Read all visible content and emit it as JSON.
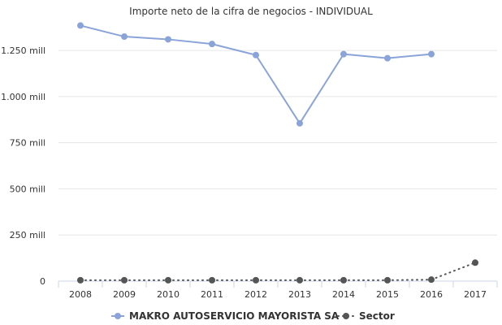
{
  "chart_data": {
    "type": "line",
    "title": "Importe neto de la cifra de negocios - INDIVIDUAL",
    "x": [
      "2008",
      "2009",
      "2010",
      "2011",
      "2012",
      "2013",
      "2014",
      "2015",
      "2016",
      "2017"
    ],
    "y_ticks": [
      0,
      250,
      500,
      750,
      1000,
      1250
    ],
    "y_tick_labels": [
      "0",
      "250 mill",
      "500 mill",
      "750 mill",
      "1.000 mill",
      "1.250 mill"
    ],
    "ylim": [
      0,
      1400
    ],
    "grid": true,
    "legend_position": "bottom-center",
    "series": [
      {
        "name": "MAKRO AUTOSERVICIO MAYORISTA SA",
        "color": "#8aa4d9",
        "style": "solid",
        "values": [
          1385,
          1325,
          1310,
          1285,
          1225,
          855,
          1230,
          1208,
          1230,
          null
        ]
      },
      {
        "name": "Sector",
        "color": "#555555",
        "style": "dotted",
        "values": [
          5,
          5,
          5,
          5,
          5,
          5,
          5,
          5,
          8,
          100
        ]
      }
    ]
  }
}
